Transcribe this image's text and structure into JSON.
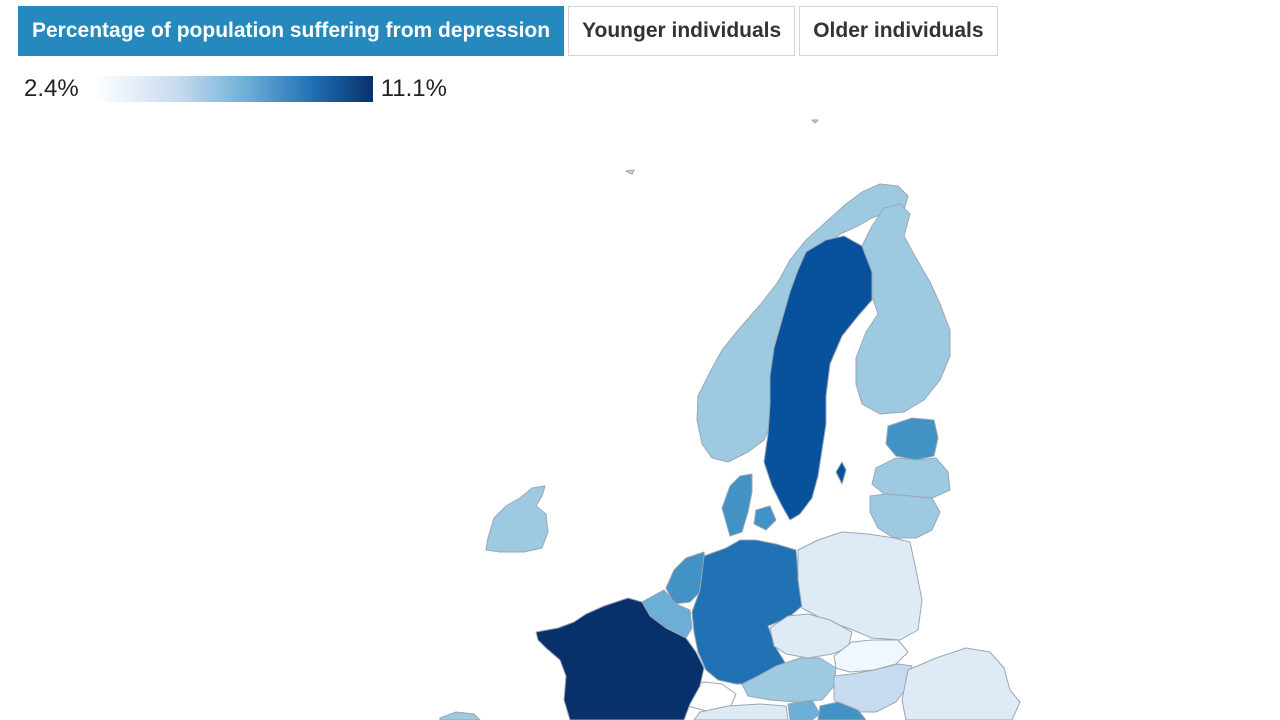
{
  "tabs": [
    {
      "label": "Percentage of population suffering from depression",
      "active": true
    },
    {
      "label": "Younger individuals",
      "active": false
    },
    {
      "label": "Older individuals",
      "active": false
    }
  ],
  "legend": {
    "min_label": "2.4%",
    "max_label": "11.1%",
    "color_low": "#ffffff",
    "color_high": "#08306b"
  },
  "colors": {
    "accent": "#2589bd",
    "darkest": "#08306b",
    "dark": "#08519c",
    "medium_dark": "#2171b5",
    "medium": "#4292c6",
    "light_medium": "#6baed6",
    "light": "#9ecae1",
    "lighter": "#c6dbef",
    "lightest": "#deebf7",
    "near_white": "#f0f7ff"
  },
  "map": {
    "regions": [
      {
        "name": "France",
        "shade": "darkest"
      },
      {
        "name": "Sweden",
        "shade": "dark"
      },
      {
        "name": "Germany",
        "shade": "medium_dark"
      },
      {
        "name": "Estonia",
        "shade": "medium"
      },
      {
        "name": "Denmark",
        "shade": "medium"
      },
      {
        "name": "Netherlands",
        "shade": "medium"
      },
      {
        "name": "Belgium",
        "shade": "light_medium"
      },
      {
        "name": "Norway",
        "shade": "light"
      },
      {
        "name": "Finland",
        "shade": "light"
      },
      {
        "name": "Latvia",
        "shade": "light"
      },
      {
        "name": "Lithuania",
        "shade": "light"
      },
      {
        "name": "Ireland",
        "shade": "light"
      },
      {
        "name": "Austria",
        "shade": "light"
      },
      {
        "name": "Poland",
        "shade": "lightest"
      },
      {
        "name": "Czechia",
        "shade": "lightest"
      },
      {
        "name": "Slovakia",
        "shade": "near_white"
      },
      {
        "name": "Hungary",
        "shade": "lighter"
      },
      {
        "name": "Romania",
        "shade": "lightest"
      }
    ]
  }
}
